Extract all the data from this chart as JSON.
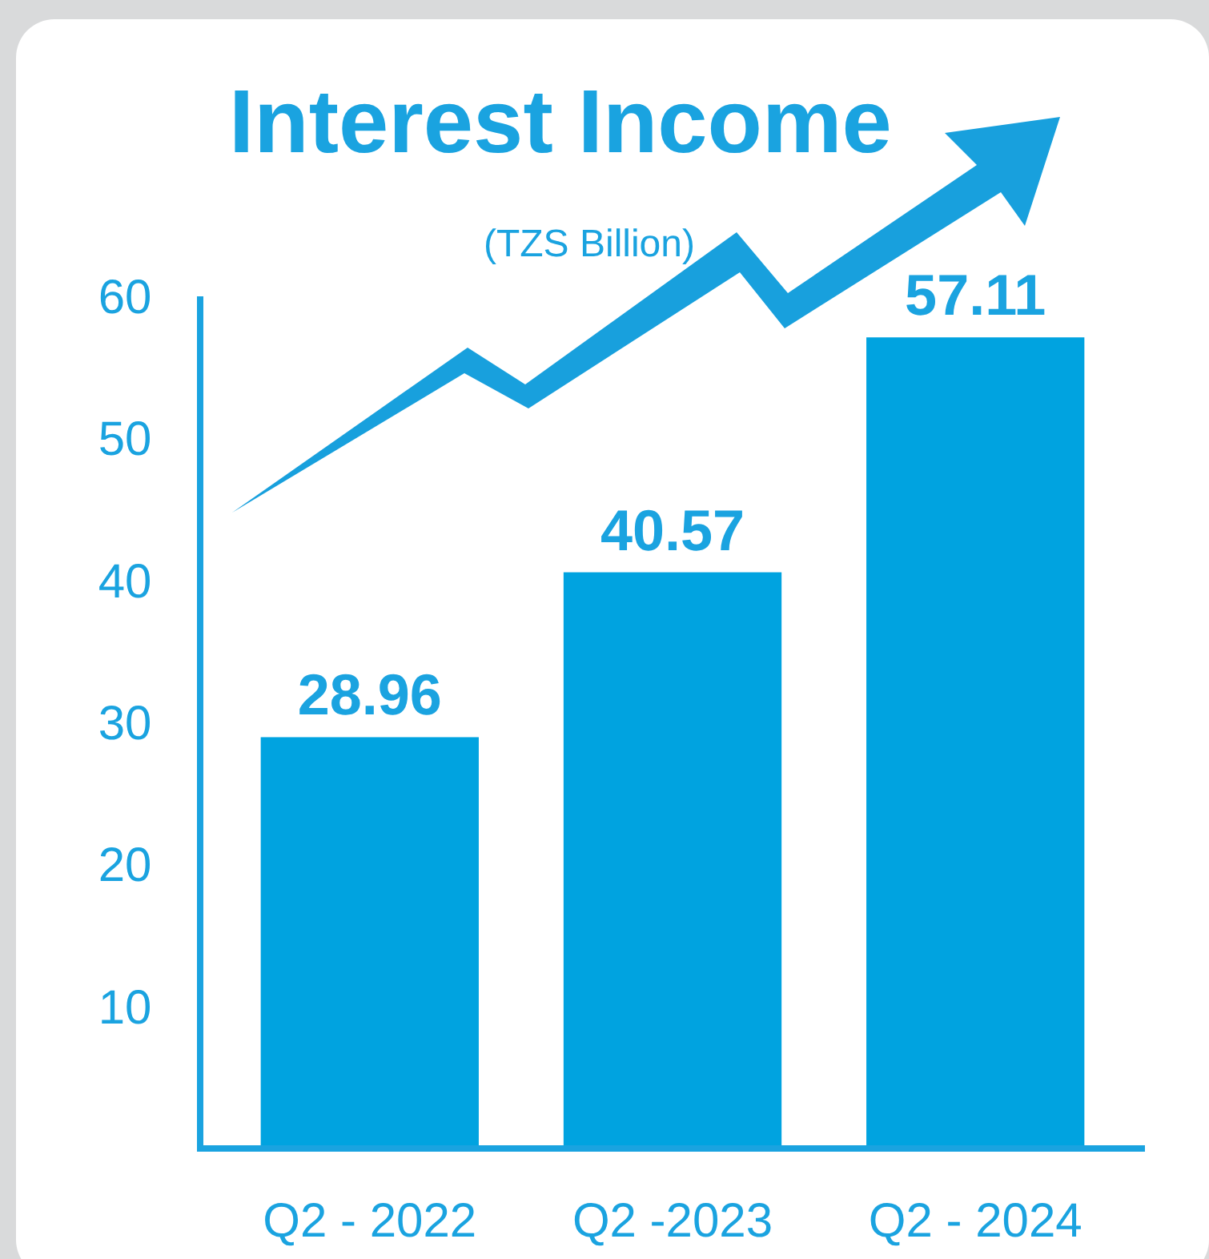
{
  "chart_data": {
    "type": "bar",
    "title": "Interest Income",
    "subtitle": "(TZS Billion)",
    "categories": [
      "Q2 - 2022",
      "Q2 -2023",
      "Q2 - 2024"
    ],
    "values": [
      28.96,
      40.57,
      57.11
    ],
    "color": "#00a3e0",
    "ylim": [
      0,
      60
    ],
    "yticks": [
      10,
      20,
      30,
      40,
      50,
      60
    ],
    "data_labels": true
  }
}
